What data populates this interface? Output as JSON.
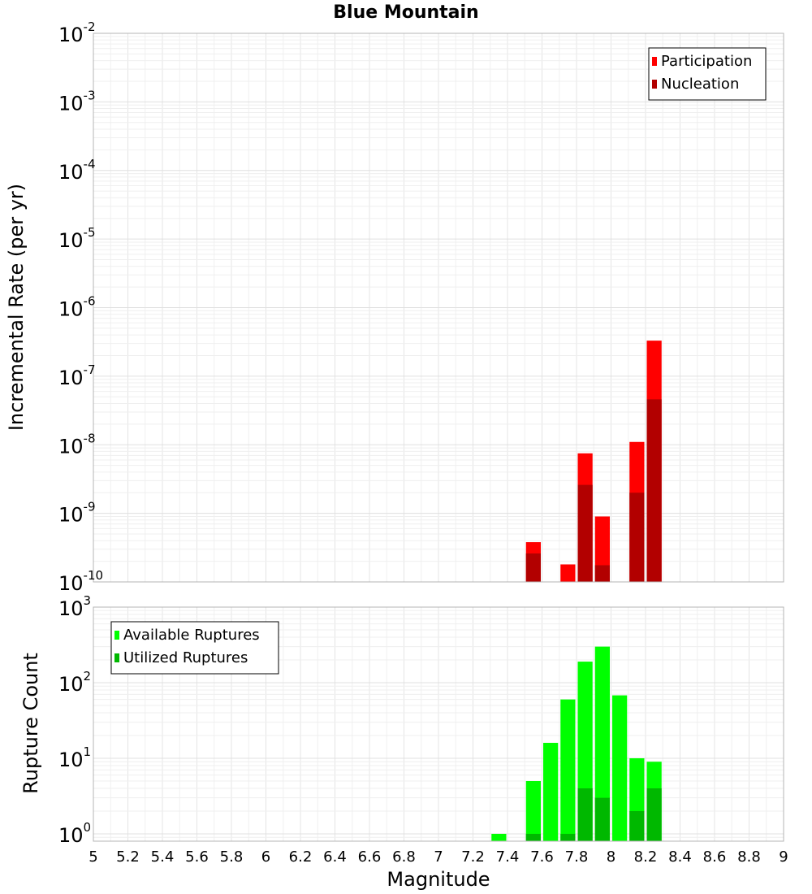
{
  "title": "Blue Mountain",
  "xlabel": "Magnitude",
  "x_ticks": [
    "5",
    "5.2",
    "5.4",
    "5.6",
    "5.8",
    "6",
    "6.2",
    "6.4",
    "6.6",
    "6.8",
    "7",
    "7.2",
    "7.4",
    "7.6",
    "7.8",
    "8",
    "8.2",
    "8.4",
    "8.6",
    "8.8",
    "9"
  ],
  "chart_data": [
    {
      "type": "bar",
      "ylabel": "Incremental Rate (per yr)",
      "y_scale": "log",
      "ylim": [
        1e-10,
        0.01
      ],
      "xlim": [
        5,
        9
      ],
      "bin_width": 0.1,
      "y_ticks": [
        {
          "base": "10",
          "exp": "-2"
        },
        {
          "base": "10",
          "exp": "-3"
        },
        {
          "base": "10",
          "exp": "-4"
        },
        {
          "base": "10",
          "exp": "-5"
        },
        {
          "base": "10",
          "exp": "-6"
        },
        {
          "base": "10",
          "exp": "-7"
        },
        {
          "base": "10",
          "exp": "-8"
        },
        {
          "base": "10",
          "exp": "-9"
        },
        {
          "base": "10",
          "exp": "-10"
        }
      ],
      "legend": {
        "position": "top-right"
      },
      "series": [
        {
          "name": "Participation",
          "color": "#ff0000",
          "x": [
            7.55,
            7.75,
            7.85,
            7.95,
            8.15,
            8.25
          ],
          "values": [
            3.8e-10,
            1.8e-10,
            7.5e-09,
            9e-10,
            1.1e-08,
            3.3e-07
          ]
        },
        {
          "name": "Nucleation",
          "color": "#b20000",
          "x": [
            7.55,
            7.85,
            7.95,
            8.15,
            8.25
          ],
          "values": [
            2.6e-10,
            2.6e-09,
            1.75e-10,
            2e-09,
            4.6e-08
          ]
        }
      ]
    },
    {
      "type": "bar",
      "ylabel": "Rupture Count",
      "y_scale": "log",
      "ylim": [
        0.8,
        1000
      ],
      "xlim": [
        5,
        9
      ],
      "bin_width": 0.1,
      "y_ticks": [
        {
          "base": "10",
          "exp": "3"
        },
        {
          "base": "10",
          "exp": "2"
        },
        {
          "base": "10",
          "exp": "1"
        },
        {
          "base": "10",
          "exp": "0"
        }
      ],
      "legend": {
        "position": "top-left"
      },
      "series": [
        {
          "name": "Available Ruptures",
          "color": "#00ff00",
          "x": [
            7.35,
            7.55,
            7.65,
            7.75,
            7.85,
            7.95,
            8.05,
            8.15,
            8.25
          ],
          "values": [
            1,
            5,
            16,
            60,
            190,
            300,
            68,
            10,
            9
          ]
        },
        {
          "name": "Utilized Ruptures",
          "color": "#00b800",
          "x": [
            7.55,
            7.75,
            7.85,
            7.95,
            8.15,
            8.25
          ],
          "values": [
            1,
            1,
            4,
            3,
            2,
            4
          ]
        }
      ]
    }
  ]
}
